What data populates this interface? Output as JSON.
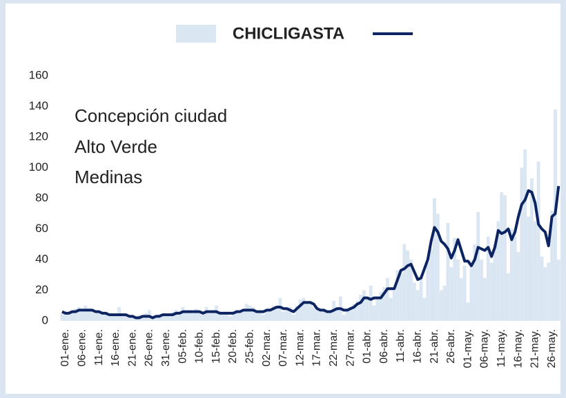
{
  "chart_data": {
    "type": "combo",
    "title": "CHICLIGASTA",
    "annotations": [
      "Concepción ciudad",
      "Alto Verde",
      "Medinas"
    ],
    "categories": [
      "01-ene.",
      null,
      null,
      null,
      null,
      "06-ene.",
      null,
      null,
      null,
      null,
      "11-ene.",
      null,
      null,
      null,
      null,
      "16-ene.",
      null,
      null,
      null,
      null,
      "21-ene.",
      null,
      null,
      null,
      null,
      "26-ene.",
      null,
      null,
      null,
      null,
      "31-ene.",
      null,
      null,
      null,
      null,
      "05-feb.",
      null,
      null,
      null,
      null,
      "10-feb.",
      null,
      null,
      null,
      null,
      "15-feb.",
      null,
      null,
      null,
      null,
      "20-feb.",
      null,
      null,
      null,
      null,
      "25-feb.",
      null,
      null,
      null,
      null,
      "02-mar.",
      null,
      null,
      null,
      null,
      "07-mar.",
      null,
      null,
      null,
      null,
      "12-mar.",
      null,
      null,
      null,
      null,
      "17-mar.",
      null,
      null,
      null,
      null,
      "22-mar.",
      null,
      null,
      null,
      null,
      "27-mar.",
      null,
      null,
      null,
      null,
      "01-abr.",
      null,
      null,
      null,
      null,
      "06-abr.",
      null,
      null,
      null,
      null,
      "11-abr.",
      null,
      null,
      null,
      null,
      "16-abr.",
      null,
      null,
      null,
      null,
      "21-abr.",
      null,
      null,
      null,
      null,
      "26-abr.",
      null,
      null,
      null,
      null,
      "01-may.",
      null,
      null,
      null,
      null,
      "06-may.",
      null,
      null,
      null,
      null,
      "11-may.",
      null,
      null,
      null,
      null,
      "16-may.",
      null,
      null,
      null,
      null,
      "21-may.",
      null,
      null,
      null,
      null,
      "26-may.",
      null,
      null,
      null
    ],
    "series": [
      {
        "type": "bar",
        "color": "#dbe6f3",
        "values": [
          5,
          6,
          4,
          7,
          8,
          9,
          6,
          10,
          8,
          7,
          5,
          6,
          4,
          5,
          3,
          5,
          4,
          9,
          3,
          4,
          2,
          3,
          2,
          4,
          3,
          5,
          7,
          2,
          3,
          4,
          4,
          5,
          3,
          6,
          7,
          4,
          9,
          6,
          7,
          5,
          8,
          6,
          4,
          9,
          5,
          7,
          10,
          4,
          5,
          6,
          3,
          6,
          7,
          5,
          8,
          11,
          10,
          9,
          5,
          6,
          4,
          8,
          7,
          10,
          9,
          15,
          6,
          8,
          9,
          4,
          10,
          14,
          15,
          12,
          13,
          9,
          7,
          6,
          8,
          5,
          5,
          13,
          9,
          16,
          4,
          7,
          9,
          11,
          13,
          17,
          20,
          14,
          23,
          10,
          16,
          19,
          22,
          28,
          15,
          20,
          33,
          31,
          50,
          46,
          40,
          25,
          20,
          28,
          15,
          38,
          47,
          80,
          70,
          20,
          23,
          64,
          35,
          54,
          40,
          28,
          36,
          12,
          38,
          50,
          71,
          40,
          28,
          55,
          38,
          50,
          65,
          84,
          82,
          31,
          60,
          55,
          45,
          100,
          112,
          68,
          93,
          65,
          104,
          42,
          35,
          38,
          72,
          138,
          40
        ]
      },
      {
        "type": "line",
        "color": "#0c2461",
        "values": [
          6,
          5,
          5,
          6,
          6,
          7,
          7,
          7,
          7,
          7,
          6,
          6,
          5,
          5,
          4,
          4,
          4,
          4,
          4,
          4,
          3,
          3,
          2,
          2,
          3,
          3,
          3,
          2,
          3,
          3,
          4,
          4,
          4,
          4,
          5,
          5,
          6,
          6,
          6,
          6,
          6,
          6,
          5,
          6,
          6,
          6,
          6,
          5,
          5,
          5,
          5,
          5,
          6,
          6,
          7,
          7,
          7,
          7,
          6,
          6,
          6,
          7,
          7,
          8,
          9,
          9,
          8,
          8,
          7,
          6,
          8,
          10,
          12,
          12,
          12,
          11,
          8,
          7,
          7,
          6,
          6,
          7,
          8,
          8,
          7,
          7,
          8,
          9,
          11,
          12,
          15,
          15,
          14,
          15,
          15,
          15,
          18,
          21,
          21,
          21,
          27,
          33,
          34,
          36,
          37,
          32,
          27,
          28,
          34,
          40,
          52,
          61,
          58,
          52,
          50,
          47,
          41,
          46,
          53,
          46,
          39,
          39,
          36,
          40,
          48,
          47,
          46,
          48,
          42,
          48,
          59,
          57,
          58,
          60,
          53,
          58,
          68,
          76,
          79,
          85,
          84,
          77,
          63,
          60,
          58,
          49,
          68,
          70,
          88
        ]
      }
    ],
    "ylim": [
      0,
      160
    ],
    "yticks": [
      0,
      20,
      40,
      60,
      80,
      100,
      120,
      140,
      160
    ],
    "grid": false
  }
}
